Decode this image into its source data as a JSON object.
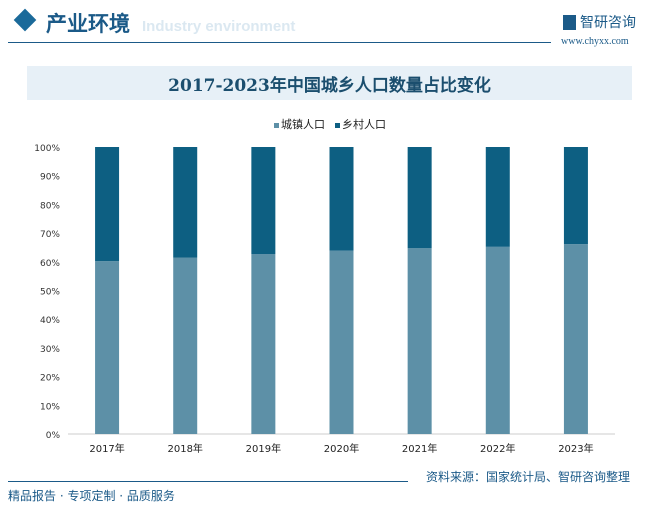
{
  "header": {
    "title": "产业环境",
    "subtitle": "Industry environment",
    "brand": "智研咨询",
    "url": "www.chyxx.com"
  },
  "footer": {
    "source": "资料来源：国家统计局、智研咨询整理",
    "slogan": "精品报告 · 专项定制 · 品质服务"
  },
  "chart_data": {
    "type": "bar",
    "stacked": true,
    "percent": true,
    "title": "2017-2023年中国城乡人口数量占比变化",
    "categories": [
      "2017年",
      "2018年",
      "2019年",
      "2020年",
      "2021年",
      "2022年",
      "2023年"
    ],
    "series": [
      {
        "name": "城镇人口",
        "values": [
          60.24,
          61.5,
          62.71,
          63.89,
          64.72,
          65.22,
          66.16
        ],
        "color": "#5d90a7"
      },
      {
        "name": "乡村人口",
        "values": [
          39.76,
          38.5,
          37.29,
          36.11,
          35.28,
          34.78,
          33.84
        ],
        "color": "#0d5f82"
      }
    ],
    "yticks": [
      "0%",
      "10%",
      "20%",
      "30%",
      "40%",
      "50%",
      "60%",
      "70%",
      "80%",
      "90%",
      "100%"
    ],
    "ylim": [
      0,
      100
    ],
    "legend": "top",
    "grid": false
  }
}
